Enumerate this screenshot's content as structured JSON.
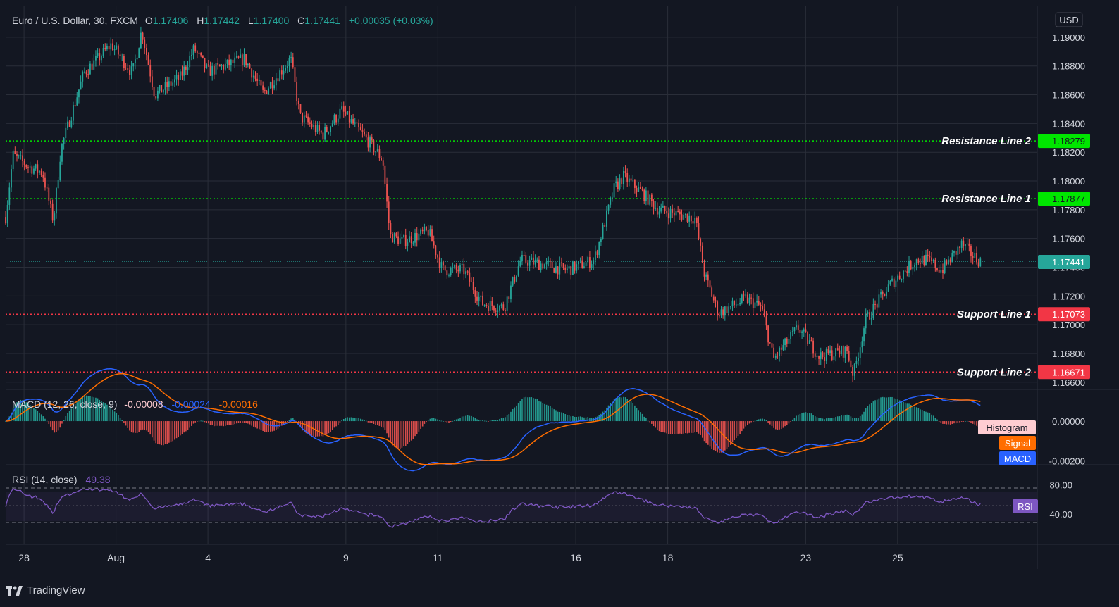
{
  "header": {
    "symbol": "Euro / U.S. Dollar, 30, FXCM",
    "o_label": "O",
    "o_value": "1.17406",
    "h_label": "H",
    "h_value": "1.17442",
    "l_label": "L",
    "l_value": "1.17400",
    "c_label": "C",
    "c_value": "1.17441",
    "change": "+0.00035 (+0.03%)"
  },
  "currency_label": "USD",
  "brand": "TradingView",
  "colors": {
    "background": "#131722",
    "grid": "#2a2e39",
    "text": "#b2b5be",
    "up": "#26a69a",
    "down": "#ef5350",
    "resistance": "#00e600",
    "support": "#f23645",
    "macd": "#2962ff",
    "signal": "#ff6d00",
    "histogram_label_bg": "#ffcdd2",
    "rsi": "#7e57c2"
  },
  "chart_data": [
    {
      "type": "candlestick",
      "title": "Euro / U.S. Dollar, 30, FXCM",
      "ylabel": "USD",
      "ylim": [
        1.1655,
        1.1922
      ],
      "y_ticks": [
        "1.19000",
        "1.18800",
        "1.18600",
        "1.18400",
        "1.18200",
        "1.18000",
        "1.17800",
        "1.17600",
        "1.17400",
        "1.17200",
        "1.17000",
        "1.16800",
        "1.16600"
      ],
      "y_tick_values": [
        1.19,
        1.188,
        1.186,
        1.184,
        1.182,
        1.18,
        1.178,
        1.176,
        1.174,
        1.172,
        1.17,
        1.168,
        1.166
      ],
      "x_ticks": [
        "28",
        "Aug",
        "4",
        "9",
        "11",
        "16",
        "18",
        "23",
        "25"
      ],
      "x_tick_sessions": [
        0.2,
        1.2,
        2.2,
        3.7,
        4.7,
        6.2,
        7.2,
        8.7,
        9.7
      ],
      "sessions_total": 10.6,
      "grid": true,
      "path_anchors": [
        [
          0,
          1.1775
        ],
        [
          0.08,
          1.1818
        ],
        [
          0.25,
          1.181
        ],
        [
          0.4,
          1.1806
        ],
        [
          0.52,
          1.1772
        ],
        [
          0.6,
          1.1822
        ],
        [
          0.85,
          1.1875
        ],
        [
          1.15,
          1.1895
        ],
        [
          1.38,
          1.1875
        ],
        [
          1.48,
          1.1905
        ],
        [
          1.62,
          1.186
        ],
        [
          1.9,
          1.1872
        ],
        [
          2.05,
          1.1892
        ],
        [
          2.2,
          1.1876
        ],
        [
          2.6,
          1.1885
        ],
        [
          2.8,
          1.1861
        ],
        [
          3.1,
          1.1885
        ],
        [
          3.2,
          1.1845
        ],
        [
          3.45,
          1.1832
        ],
        [
          3.65,
          1.1849
        ],
        [
          3.95,
          1.1827
        ],
        [
          4.1,
          1.1815
        ],
        [
          4.18,
          1.1762
        ],
        [
          4.32,
          1.1758
        ],
        [
          4.6,
          1.1765
        ],
        [
          4.75,
          1.1738
        ],
        [
          4.98,
          1.1738
        ],
        [
          5.18,
          1.1715
        ],
        [
          5.42,
          1.1712
        ],
        [
          5.6,
          1.1745
        ],
        [
          5.85,
          1.1742
        ],
        [
          6.1,
          1.1738
        ],
        [
          6.4,
          1.1745
        ],
        [
          6.62,
          1.1795
        ],
        [
          6.72,
          1.1803
        ],
        [
          6.92,
          1.1792
        ],
        [
          7.1,
          1.178
        ],
        [
          7.5,
          1.1774
        ],
        [
          7.6,
          1.1735
        ],
        [
          7.75,
          1.1708
        ],
        [
          8.05,
          1.1718
        ],
        [
          8.22,
          1.1712
        ],
        [
          8.35,
          1.1676
        ],
        [
          8.62,
          1.1698
        ],
        [
          8.85,
          1.1678
        ],
        [
          9.15,
          1.1682
        ],
        [
          9.22,
          1.1665
        ],
        [
          9.35,
          1.1703
        ],
        [
          9.62,
          1.1728
        ],
        [
          9.9,
          1.1745
        ],
        [
          10.02,
          1.1745
        ],
        [
          10.18,
          1.1738
        ],
        [
          10.4,
          1.1756
        ],
        [
          10.52,
          1.1748
        ],
        [
          10.6,
          1.1744
        ]
      ],
      "last_price": 1.17441,
      "levels": [
        {
          "name": "Resistance Line 2",
          "value": 1.18279,
          "value_label": "1.18279",
          "kind": "resistance"
        },
        {
          "name": "Resistance Line 1",
          "value": 1.17877,
          "value_label": "1.17877",
          "kind": "resistance"
        },
        {
          "name": "Support Line 1",
          "value": 1.17073,
          "value_label": "1.17073",
          "kind": "support"
        },
        {
          "name": "Support Line 2",
          "value": 1.16671,
          "value_label": "1.16671",
          "kind": "support"
        }
      ],
      "last_price_label": "1.17441"
    },
    {
      "type": "line",
      "title": "MACD",
      "legend_name": "MACD (12, 26, close, 9)",
      "values_label": {
        "histogram": "-0.00008",
        "macd": "-0.00024",
        "signal": "-0.00016"
      },
      "ylim": [
        -0.0022,
        0.0016
      ],
      "y_ticks": [
        "0.00000",
        "-0.00200"
      ],
      "y_tick_values": [
        0.0,
        -0.002
      ],
      "series": [
        {
          "name": "Histogram",
          "color": "#ffcdd2"
        },
        {
          "name": "Signal",
          "color": "#ff6d00"
        },
        {
          "name": "MACD",
          "color": "#2962ff"
        }
      ]
    },
    {
      "type": "line",
      "title": "RSI",
      "legend_name": "RSI (14, close)",
      "value_label": "49.38",
      "ylim": [
        0,
        100
      ],
      "band": [
        30,
        70
      ],
      "y_ticks": [
        "80.00",
        "40.00"
      ],
      "y_tick_values": [
        80,
        40
      ],
      "series": [
        {
          "name": "RSI",
          "color": "#7e57c2"
        }
      ]
    }
  ]
}
